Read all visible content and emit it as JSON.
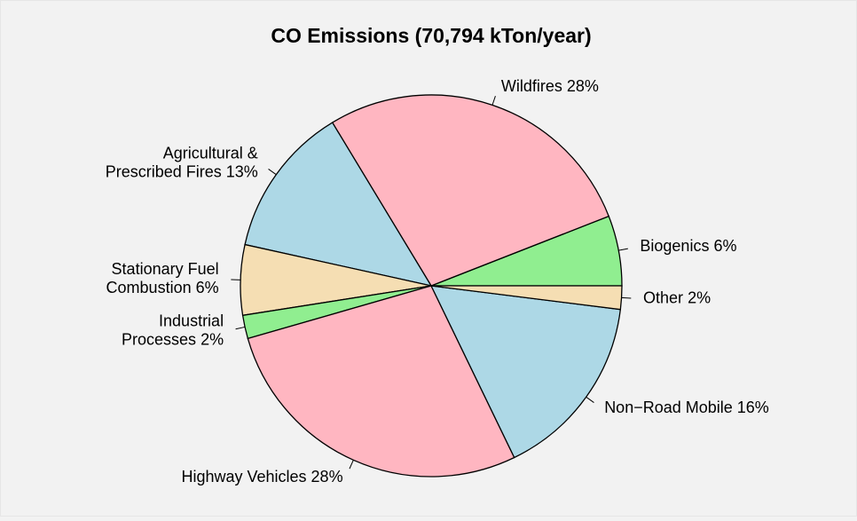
{
  "chart_data": {
    "type": "pie",
    "title": "CO Emissions (70,794 kTon/year)",
    "categories": [
      "Biogenics",
      "Wildfires",
      "Agricultural &\nPrescribed Fires",
      "Stationary Fuel\nCombustion",
      "Industrial\nProcesses",
      "Highway Vehicles",
      "Non−Road Mobile",
      "Other"
    ],
    "values": [
      6,
      28,
      13,
      6,
      2,
      28,
      16,
      2
    ],
    "value_labels": [
      "6%",
      "28%",
      "13%",
      "6%",
      "2%",
      "28%",
      "16%",
      "2%"
    ],
    "colors": [
      "#90ee90",
      "#ffb6c1",
      "#add8e6",
      "#f5deb3",
      "#90ee90",
      "#ffb6c1",
      "#add8e6",
      "#f5deb3"
    ]
  }
}
